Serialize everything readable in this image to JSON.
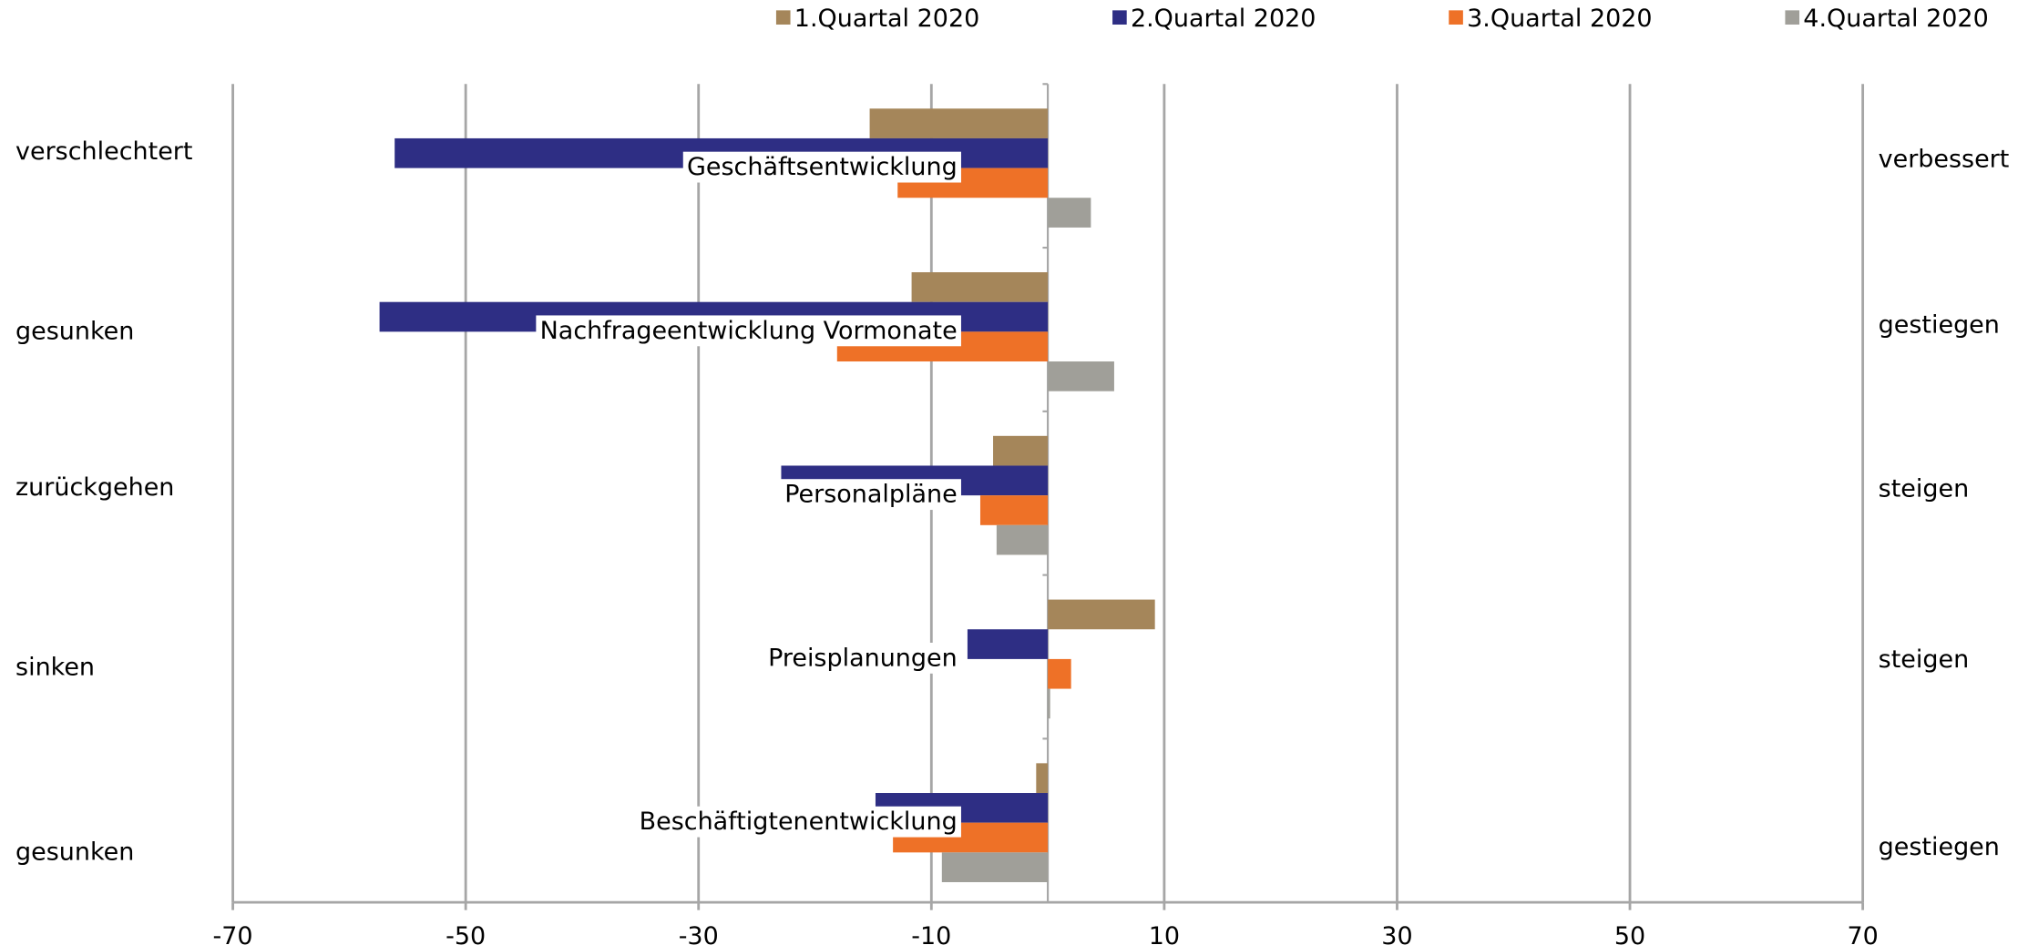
{
  "chart_data": {
    "type": "bar",
    "orientation": "horizontal",
    "categories": [
      "Geschäftsentwicklung",
      "Nachfrageentwicklung Vormonate",
      "Personalpläne",
      "Preisplanungen",
      "Beschäftigtenentwicklung"
    ],
    "left_labels": [
      "verschlechtert",
      "gesunken",
      "zurückgehen",
      "sinken",
      "gesunken"
    ],
    "right_labels": [
      "verbessert",
      "gestiegen",
      "steigen",
      "steigen",
      "gestiegen"
    ],
    "series": [
      {
        "name": "1.Quartal 2020",
        "color": "#a5865a",
        "values": [
          -15.3,
          -11.7,
          -4.7,
          9.2,
          -1.0
        ]
      },
      {
        "name": "2.Quartal 2020",
        "color": "#2e2e84",
        "values": [
          -56.1,
          -57.4,
          -22.9,
          -6.9,
          -14.8
        ]
      },
      {
        "name": "3.Quartal 2020",
        "color": "#ee7127",
        "values": [
          -12.9,
          -18.1,
          -5.8,
          2.0,
          -13.3
        ]
      },
      {
        "name": "4.Quartal 2020",
        "color": "#a09f99",
        "values": [
          3.7,
          5.7,
          -4.4,
          0.2,
          -9.1
        ]
      }
    ],
    "xlim": [
      -70,
      70
    ],
    "xticks": [
      -70,
      -50,
      -30,
      -10,
      10,
      30,
      50,
      70
    ],
    "grid": true,
    "legend": "top"
  }
}
